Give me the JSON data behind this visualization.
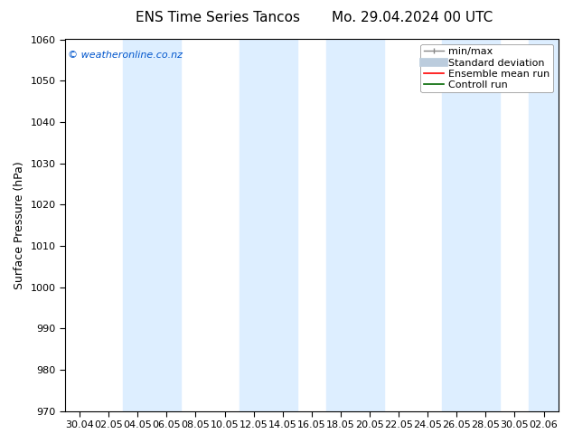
{
  "title_left": "ENS Time Series Tancos",
  "title_right": "Mo. 29.04.2024 00 UTC",
  "ylabel": "Surface Pressure (hPa)",
  "ylim": [
    970,
    1060
  ],
  "yticks": [
    970,
    980,
    990,
    1000,
    1010,
    1020,
    1030,
    1040,
    1050,
    1060
  ],
  "xtick_labels": [
    "30.04",
    "02.05",
    "04.05",
    "06.05",
    "08.05",
    "10.05",
    "12.05",
    "14.05",
    "16.05",
    "18.05",
    "20.05",
    "22.05",
    "24.05",
    "26.05",
    "28.05",
    "30.05",
    "02.06"
  ],
  "watermark": "© weatheronline.co.nz",
  "watermark_color": "#0055cc",
  "background_color": "#ffffff",
  "plot_bg_color": "#ffffff",
  "band_color": "#ddeeff",
  "band_indices": [
    2,
    3,
    6,
    7,
    9,
    10,
    13,
    16
  ],
  "legend_items": [
    "min/max",
    "Standard deviation",
    "Ensemble mean run",
    "Controll run"
  ],
  "legend_line_colors": [
    "#aaaaaa",
    "#bbccdd",
    "#ff0000",
    "#006600"
  ],
  "figsize": [
    6.34,
    4.9
  ],
  "dpi": 100,
  "title_fontsize": 11,
  "ylabel_fontsize": 9,
  "tick_fontsize": 8,
  "legend_fontsize": 8
}
